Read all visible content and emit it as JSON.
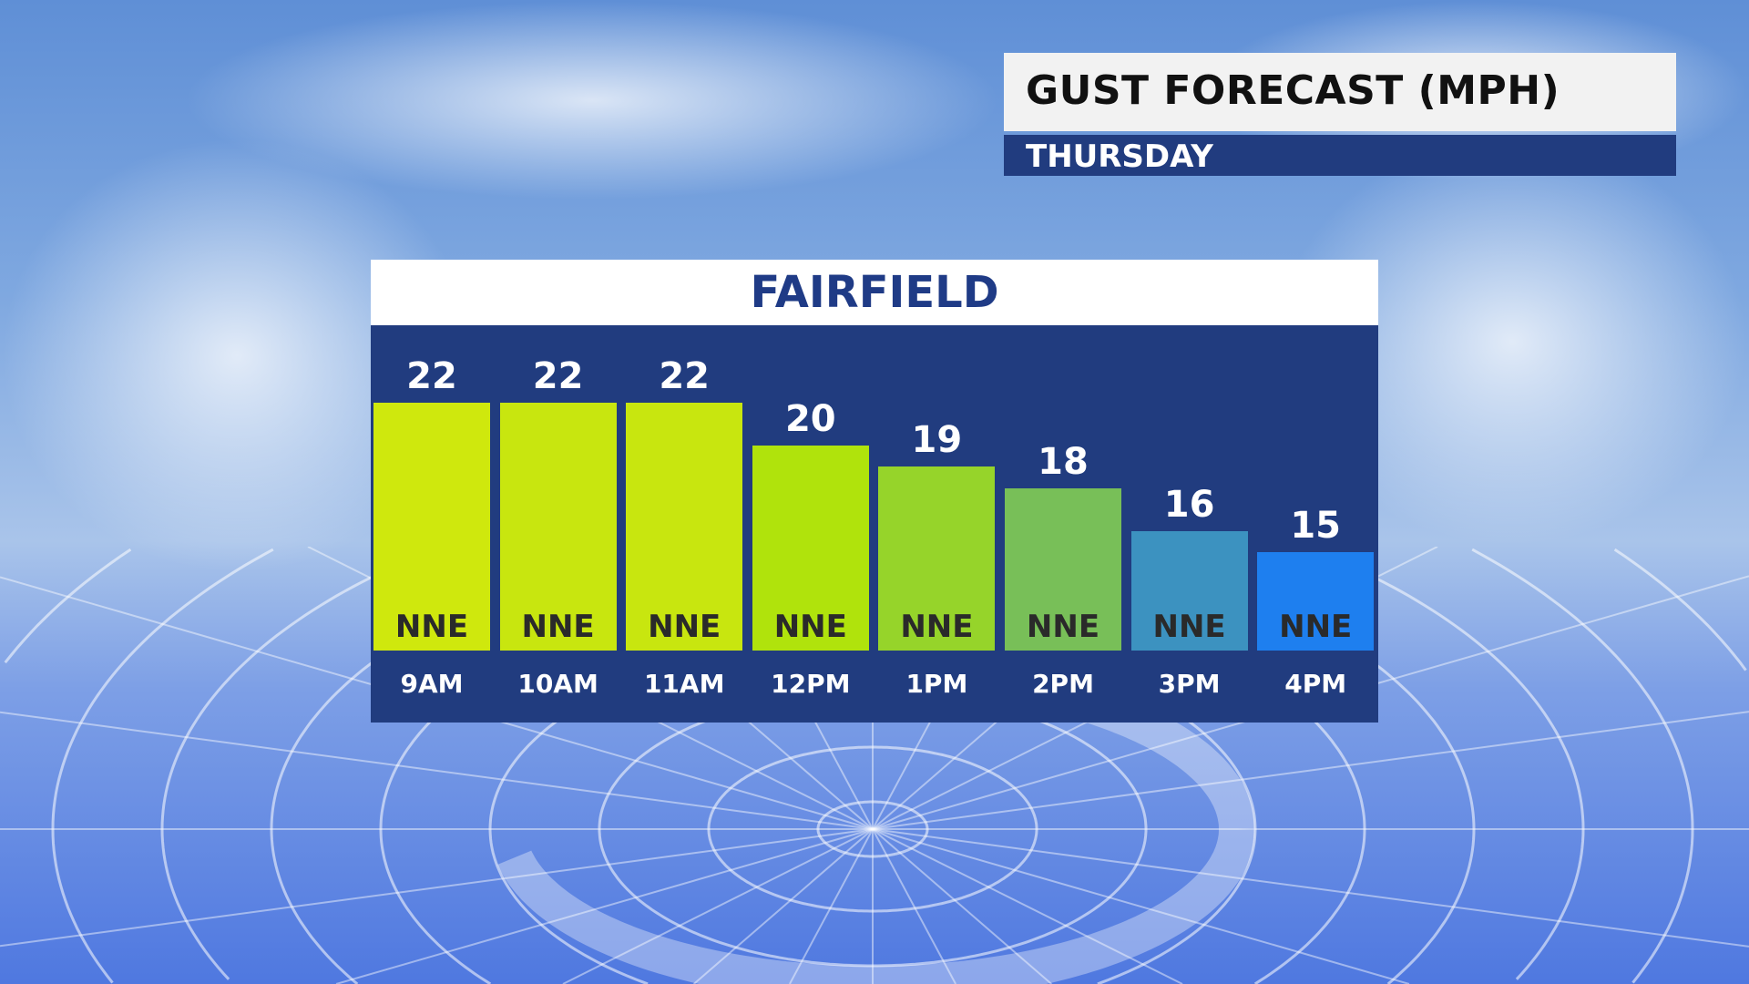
{
  "header": {
    "title": "GUST FORECAST (MPH)",
    "subtitle": "THURSDAY"
  },
  "chart_data": {
    "type": "bar",
    "title": "FAIRFIELD",
    "categories": [
      "9AM",
      "10AM",
      "11AM",
      "12PM",
      "1PM",
      "2PM",
      "3PM",
      "4PM"
    ],
    "values": [
      22,
      22,
      22,
      20,
      19,
      18,
      16,
      15
    ],
    "direction": [
      "NNE",
      "NNE",
      "NNE",
      "NNE",
      "NNE",
      "NNE",
      "NNE",
      "NNE"
    ],
    "colors": [
      "#cfe80d",
      "#c8e60f",
      "#c8e60f",
      "#b0e30c",
      "#96d42a",
      "#78bf58",
      "#3c92c0",
      "#1e7fef"
    ],
    "units": "MPH"
  }
}
